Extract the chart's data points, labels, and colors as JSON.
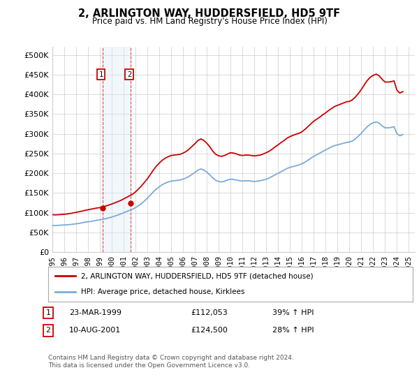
{
  "title": "2, ARLINGTON WAY, HUDDERSFIELD, HD5 9TF",
  "subtitle": "Price paid vs. HM Land Registry's House Price Index (HPI)",
  "legend_line1": "2, ARLINGTON WAY, HUDDERSFIELD, HD5 9TF (detached house)",
  "legend_line2": "HPI: Average price, detached house, Kirklees",
  "footer": "Contains HM Land Registry data © Crown copyright and database right 2024.\nThis data is licensed under the Open Government Licence v3.0.",
  "sale1_label": "1",
  "sale1_date": "23-MAR-1999",
  "sale1_price": "£112,053",
  "sale1_hpi": "39% ↑ HPI",
  "sale2_label": "2",
  "sale2_date": "10-AUG-2001",
  "sale2_price": "£124,500",
  "sale2_hpi": "28% ↑ HPI",
  "red_color": "#cc0000",
  "blue_color": "#7aabdb",
  "shading_color": "#daeaf7",
  "grid_color": "#cccccc",
  "sale_box_color": "#cc0000",
  "bg_color": "#ffffff",
  "xlim": [
    1995.0,
    2025.5
  ],
  "ylim": [
    0,
    520000
  ],
  "yticks": [
    0,
    50000,
    100000,
    150000,
    200000,
    250000,
    300000,
    350000,
    400000,
    450000,
    500000
  ],
  "ytick_labels": [
    "£0",
    "£50K",
    "£100K",
    "£150K",
    "£200K",
    "£250K",
    "£300K",
    "£350K",
    "£400K",
    "£450K",
    "£500K"
  ],
  "xticks": [
    1995,
    1996,
    1997,
    1998,
    1999,
    2000,
    2001,
    2002,
    2003,
    2004,
    2005,
    2006,
    2007,
    2008,
    2009,
    2010,
    2011,
    2012,
    2013,
    2014,
    2015,
    2016,
    2017,
    2018,
    2019,
    2020,
    2021,
    2022,
    2023,
    2024,
    2025
  ],
  "sale1_x": 1999.23,
  "sale1_y": 112053,
  "sale2_x": 2001.61,
  "sale2_y": 124500,
  "hpi_years": [
    1995.0,
    1995.25,
    1995.5,
    1995.75,
    1996.0,
    1996.25,
    1996.5,
    1996.75,
    1997.0,
    1997.25,
    1997.5,
    1997.75,
    1998.0,
    1998.25,
    1998.5,
    1998.75,
    1999.0,
    1999.25,
    1999.5,
    1999.75,
    2000.0,
    2000.25,
    2000.5,
    2000.75,
    2001.0,
    2001.25,
    2001.5,
    2001.75,
    2002.0,
    2002.25,
    2002.5,
    2002.75,
    2003.0,
    2003.25,
    2003.5,
    2003.75,
    2004.0,
    2004.25,
    2004.5,
    2004.75,
    2005.0,
    2005.25,
    2005.5,
    2005.75,
    2006.0,
    2006.25,
    2006.5,
    2006.75,
    2007.0,
    2007.25,
    2007.5,
    2007.75,
    2008.0,
    2008.25,
    2008.5,
    2008.75,
    2009.0,
    2009.25,
    2009.5,
    2009.75,
    2010.0,
    2010.25,
    2010.5,
    2010.75,
    2011.0,
    2011.25,
    2011.5,
    2011.75,
    2012.0,
    2012.25,
    2012.5,
    2012.75,
    2013.0,
    2013.25,
    2013.5,
    2013.75,
    2014.0,
    2014.25,
    2014.5,
    2014.75,
    2015.0,
    2015.25,
    2015.5,
    2015.75,
    2016.0,
    2016.25,
    2016.5,
    2016.75,
    2017.0,
    2017.25,
    2017.5,
    2017.75,
    2018.0,
    2018.25,
    2018.5,
    2018.75,
    2019.0,
    2019.25,
    2019.5,
    2019.75,
    2020.0,
    2020.25,
    2020.5,
    2020.75,
    2021.0,
    2021.25,
    2021.5,
    2021.75,
    2022.0,
    2022.25,
    2022.5,
    2022.75,
    2023.0,
    2023.25,
    2023.5,
    2023.75,
    2024.0,
    2024.25,
    2024.5
  ],
  "hpi_values": [
    68000,
    67500,
    68000,
    68500,
    69000,
    69500,
    70000,
    71000,
    72000,
    73000,
    74500,
    76000,
    77000,
    78000,
    79500,
    81000,
    82000,
    83500,
    85000,
    87000,
    89000,
    91500,
    94000,
    97000,
    100000,
    103000,
    106000,
    109000,
    113000,
    118000,
    123000,
    130000,
    137000,
    145000,
    153000,
    160000,
    166000,
    171000,
    175000,
    178000,
    180000,
    181000,
    182000,
    183000,
    185000,
    188000,
    192000,
    197000,
    202000,
    208000,
    211000,
    208000,
    203000,
    196000,
    188000,
    182000,
    179000,
    178000,
    180000,
    183000,
    185000,
    184000,
    183000,
    181000,
    180000,
    181000,
    181000,
    180000,
    179000,
    180000,
    181000,
    183000,
    185000,
    188000,
    192000,
    196000,
    200000,
    204000,
    208000,
    212000,
    215000,
    217000,
    219000,
    221000,
    224000,
    228000,
    233000,
    238000,
    243000,
    247000,
    251000,
    255000,
    259000,
    263000,
    267000,
    270000,
    272000,
    274000,
    276000,
    278000,
    279000,
    282000,
    287000,
    294000,
    301000,
    310000,
    318000,
    324000,
    328000,
    330000,
    327000,
    320000,
    315000,
    315000,
    316000,
    318000,
    300000,
    295000,
    298000
  ],
  "red_years": [
    1995.0,
    1995.25,
    1995.5,
    1995.75,
    1996.0,
    1996.25,
    1996.5,
    1996.75,
    1997.0,
    1997.25,
    1997.5,
    1997.75,
    1998.0,
    1998.25,
    1998.5,
    1998.75,
    1999.0,
    1999.25,
    1999.5,
    1999.75,
    2000.0,
    2000.25,
    2000.5,
    2000.75,
    2001.0,
    2001.25,
    2001.5,
    2001.75,
    2002.0,
    2002.25,
    2002.5,
    2002.75,
    2003.0,
    2003.25,
    2003.5,
    2003.75,
    2004.0,
    2004.25,
    2004.5,
    2004.75,
    2005.0,
    2005.25,
    2005.5,
    2005.75,
    2006.0,
    2006.25,
    2006.5,
    2006.75,
    2007.0,
    2007.25,
    2007.5,
    2007.75,
    2008.0,
    2008.25,
    2008.5,
    2008.75,
    2009.0,
    2009.25,
    2009.5,
    2009.75,
    2010.0,
    2010.25,
    2010.5,
    2010.75,
    2011.0,
    2011.25,
    2011.5,
    2011.75,
    2012.0,
    2012.25,
    2012.5,
    2012.75,
    2013.0,
    2013.25,
    2013.5,
    2013.75,
    2014.0,
    2014.25,
    2014.5,
    2014.75,
    2015.0,
    2015.25,
    2015.5,
    2015.75,
    2016.0,
    2016.25,
    2016.5,
    2016.75,
    2017.0,
    2017.25,
    2017.5,
    2017.75,
    2018.0,
    2018.25,
    2018.5,
    2018.75,
    2019.0,
    2019.25,
    2019.5,
    2019.75,
    2020.0,
    2020.25,
    2020.5,
    2020.75,
    2021.0,
    2021.25,
    2021.5,
    2021.75,
    2022.0,
    2022.25,
    2022.5,
    2022.75,
    2023.0,
    2023.25,
    2023.5,
    2023.75,
    2024.0,
    2024.25,
    2024.5
  ],
  "red_values": [
    95000,
    94500,
    95000,
    95500,
    96000,
    97000,
    98000,
    99500,
    101000,
    102500,
    104000,
    106000,
    107500,
    109000,
    110500,
    112000,
    113000,
    115000,
    117000,
    119500,
    122000,
    125000,
    128000,
    131000,
    135000,
    139000,
    143000,
    147000,
    153000,
    160000,
    168000,
    177000,
    186000,
    197000,
    208000,
    218000,
    226000,
    233000,
    238000,
    242000,
    245000,
    246000,
    247000,
    248000,
    251000,
    255000,
    261000,
    268000,
    275000,
    283000,
    287000,
    283000,
    276000,
    267000,
    256000,
    248000,
    244000,
    243000,
    245000,
    249000,
    252000,
    251000,
    249000,
    246000,
    245000,
    246000,
    246000,
    245000,
    244000,
    245000,
    246000,
    249000,
    252000,
    256000,
    261000,
    267000,
    272000,
    278000,
    283000,
    289000,
    293000,
    296000,
    299000,
    301000,
    305000,
    311000,
    318000,
    325000,
    332000,
    337000,
    342000,
    348000,
    353000,
    359000,
    364000,
    369000,
    372000,
    375000,
    378000,
    381000,
    382000,
    386000,
    393000,
    402000,
    412000,
    424000,
    435000,
    443000,
    448000,
    451000,
    447000,
    438000,
    431000,
    431000,
    432000,
    434000,
    410000,
    403000,
    407000
  ]
}
